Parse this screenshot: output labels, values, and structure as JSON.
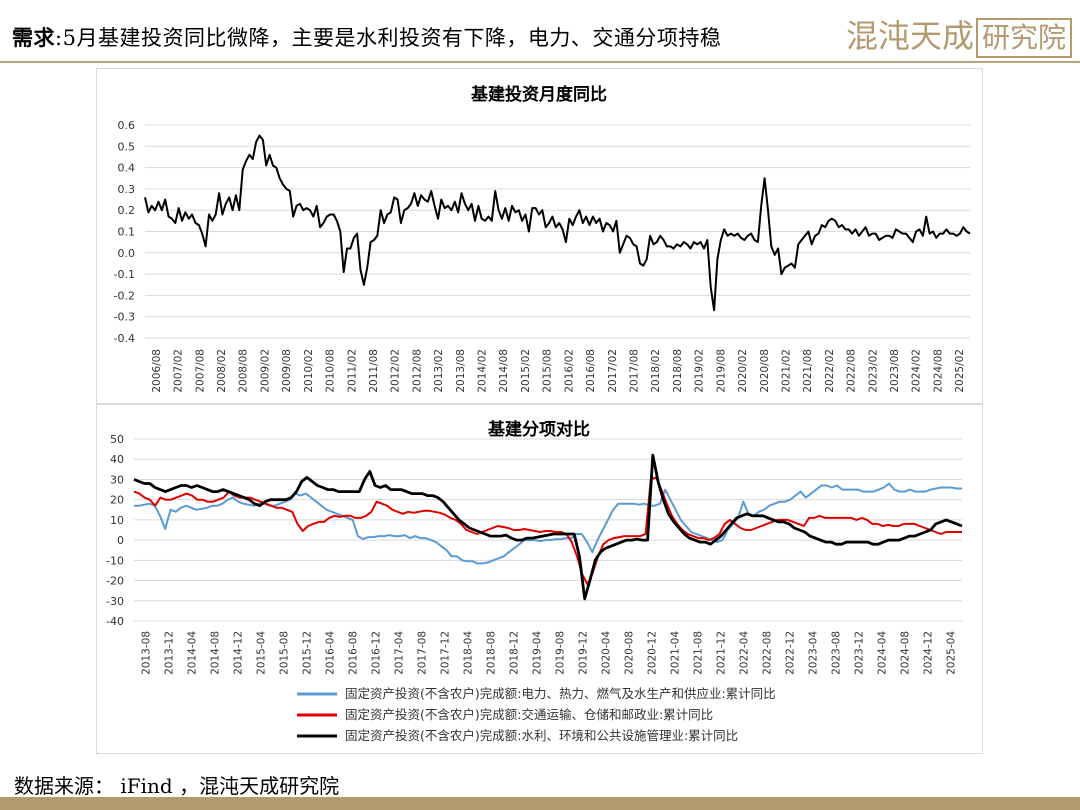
{
  "header": {
    "prefix": "需求",
    "colon": ":",
    "title": "5月基建投资同比微降，主要是水利投资有下降，电力、交通分项持稳",
    "logo_text": "混沌天成",
    "logo_box_text": "研究院"
  },
  "footer": {
    "source": "数据来源： iFind ，混沌天成研究院"
  },
  "colors": {
    "gold": "#b39a6f",
    "blue": "#5b9bd5",
    "red": "#e00000",
    "black": "#000000"
  },
  "chart_data": [
    {
      "type": "line",
      "title": "基建投资月度同比",
      "ylim": [
        -0.4,
        0.6
      ],
      "yticks": [
        "0.6",
        "0.5",
        "0.4",
        "0.3",
        "0.2",
        "0.1",
        "0.0",
        "-0.1",
        "-0.2",
        "-0.3",
        "-0.4"
      ],
      "xtick_labels": [
        "2006/08",
        "2007/02",
        "2007/08",
        "2008/02",
        "2008/08",
        "2009/02",
        "2009/08",
        "2010/02",
        "2010/08",
        "2011/02",
        "2011/08",
        "2012/02",
        "2012/08",
        "2013/02",
        "2013/08",
        "2014/02",
        "2014/08",
        "2015/02",
        "2015/08",
        "2016/02",
        "2016/08",
        "2017/02",
        "2017/08",
        "2018/02",
        "2018/08",
        "2019/02",
        "2019/08",
        "2020/02",
        "2020/08",
        "2021/02",
        "2021/08",
        "2022/02",
        "2022/08",
        "2023/02",
        "2023/08",
        "2024/02",
        "2024/08",
        "2025/02"
      ],
      "grid": true,
      "series": [
        {
          "color": "#000000",
          "values": [
            0.26,
            0.19,
            0.22,
            0.2,
            0.24,
            0.2,
            0.25,
            0.17,
            0.16,
            0.14,
            0.21,
            0.15,
            0.19,
            0.16,
            0.18,
            0.14,
            0.13,
            0.09,
            0.03,
            0.18,
            0.15,
            0.18,
            0.28,
            0.18,
            0.23,
            0.26,
            0.2,
            0.27,
            0.2,
            0.39,
            0.43,
            0.46,
            0.44,
            0.52,
            0.55,
            0.53,
            0.41,
            0.46,
            0.41,
            0.4,
            0.35,
            0.32,
            0.3,
            0.29,
            0.17,
            0.22,
            0.23,
            0.2,
            0.21,
            0.2,
            0.17,
            0.22,
            0.12,
            0.14,
            0.17,
            0.18,
            0.18,
            0.15,
            0.1,
            -0.09,
            0.02,
            0.02,
            0.07,
            0.09,
            -0.08,
            -0.15,
            -0.07,
            0.05,
            0.06,
            0.08,
            0.2,
            0.14,
            0.18,
            0.19,
            0.26,
            0.25,
            0.14,
            0.2,
            0.21,
            0.23,
            0.28,
            0.22,
            0.27,
            0.25,
            0.24,
            0.29,
            0.22,
            0.16,
            0.25,
            0.21,
            0.22,
            0.2,
            0.24,
            0.19,
            0.28,
            0.23,
            0.2,
            0.23,
            0.15,
            0.22,
            0.16,
            0.15,
            0.17,
            0.15,
            0.29,
            0.2,
            0.16,
            0.21,
            0.15,
            0.22,
            0.19,
            0.2,
            0.15,
            0.18,
            0.1,
            0.21,
            0.21,
            0.18,
            0.2,
            0.12,
            0.14,
            0.17,
            0.12,
            0.14,
            0.11,
            0.05,
            0.16,
            0.13,
            0.17,
            0.2,
            0.14,
            0.17,
            0.13,
            0.17,
            0.14,
            0.16,
            0.1,
            0.14,
            0.13,
            0.1,
            0.15,
            0.0,
            0.04,
            0.08,
            0.07,
            0.04,
            0.03,
            -0.05,
            -0.06,
            -0.03,
            0.08,
            0.04,
            0.05,
            0.08,
            0.06,
            0.03,
            0.03,
            0.02,
            0.04,
            0.03,
            0.05,
            0.04,
            0.02,
            0.05,
            0.04,
            0.05,
            0.02,
            0.06,
            -0.16,
            -0.27,
            -0.03,
            0.06,
            0.11,
            0.08,
            0.09,
            0.08,
            0.09,
            0.07,
            0.06,
            0.08,
            0.09,
            0.06,
            0.05,
            0.22,
            0.35,
            0.2,
            0.03,
            -0.01,
            0.02,
            -0.1,
            -0.07,
            -0.06,
            -0.05,
            -0.07,
            0.04,
            0.06,
            0.08,
            0.1,
            0.04,
            0.08,
            0.09,
            0.13,
            0.12,
            0.15,
            0.16,
            0.15,
            0.12,
            0.13,
            0.11,
            0.11,
            0.09,
            0.11,
            0.08,
            0.1,
            0.12,
            0.08,
            0.09,
            0.09,
            0.06,
            0.07,
            0.08,
            0.08,
            0.07,
            0.11,
            0.1,
            0.09,
            0.09,
            0.07,
            0.05,
            0.1,
            0.11,
            0.08,
            0.17,
            0.09,
            0.1,
            0.07,
            0.09,
            0.09,
            0.11,
            0.09,
            0.09,
            0.08,
            0.09,
            0.12,
            0.1,
            0.09
          ]
        }
      ]
    },
    {
      "type": "line",
      "title": "基建分项对比",
      "ylim": [
        -40,
        50
      ],
      "yticks": [
        "50",
        "40",
        "30",
        "20",
        "10",
        "0",
        "-10",
        "-20",
        "-30",
        "-40"
      ],
      "xtick_labels": [
        "2013-08",
        "2013-12",
        "2014-04",
        "2014-08",
        "2014-12",
        "2015-04",
        "2015-08",
        "2015-12",
        "2016-04",
        "2016-08",
        "2016-12",
        "2017-04",
        "2017-08",
        "2017-12",
        "2018-04",
        "2018-08",
        "2018-12",
        "2019-04",
        "2019-08",
        "2019-12",
        "2020-04",
        "2020-08",
        "2020-12",
        "2021-04",
        "2021-08",
        "2021-12",
        "2022-04",
        "2022-08",
        "2022-12",
        "2023-04",
        "2023-08",
        "2023-12",
        "2024-04",
        "2024-08",
        "2024-12",
        "2025-04"
      ],
      "grid": true,
      "legend": "bottom",
      "series": [
        {
          "name": "固定资产投资(不含农户)完成额:电力、热力、燃气及水生产和供应业:累计同比",
          "color": "#5b9bd5",
          "values": [
            17,
            17,
            17.5,
            18,
            17,
            12,
            5.5,
            15,
            14,
            16,
            17,
            16,
            15,
            15.5,
            16,
            17,
            17,
            18,
            20,
            21,
            19,
            18,
            17.5,
            17,
            18,
            18,
            17,
            17,
            18,
            19,
            20,
            23,
            22,
            23,
            21,
            19,
            17,
            15,
            14,
            13,
            12,
            11,
            10,
            2,
            0.5,
            1.5,
            1.5,
            2,
            2,
            2.5,
            2,
            2,
            2.5,
            1,
            2,
            1,
            1,
            0,
            -1,
            -3,
            -5,
            -8,
            -8,
            -10,
            -10.5,
            -10.5,
            -11.5,
            -11.5,
            -11,
            -10,
            -9,
            -8,
            -6,
            -4,
            -2,
            0,
            0,
            0,
            -0.5,
            0,
            0,
            0.5,
            0.5,
            1,
            1,
            3,
            3,
            -1,
            -6,
            0,
            5,
            10,
            15,
            18,
            18,
            18,
            18,
            17.5,
            18,
            17,
            17,
            18,
            25,
            20,
            15,
            10,
            7,
            4,
            3,
            2,
            1,
            0,
            -1,
            0,
            5,
            8,
            11,
            19,
            13,
            12,
            14,
            15,
            17,
            18,
            19,
            19,
            20,
            22,
            24,
            21,
            23,
            25,
            27,
            27,
            26,
            27,
            25,
            25,
            25,
            25,
            24,
            24,
            24,
            25,
            26,
            28,
            25,
            24,
            24,
            25,
            24,
            24,
            24,
            25,
            25.5,
            26,
            26,
            26,
            25.5,
            25.5
          ]
        },
        {
          "name": "固定资产投资(不含农户)完成额:交通运输、仓储和邮政业:累计同比",
          "color": "#e00000",
          "values": [
            24,
            23,
            21,
            20,
            17,
            21,
            20,
            20,
            21,
            22,
            23,
            22,
            20,
            20,
            19,
            19,
            20,
            21,
            24,
            22,
            21,
            21,
            21,
            20,
            19,
            18,
            17,
            16,
            16,
            15,
            14,
            8,
            4.5,
            7,
            8,
            9,
            9,
            11,
            12,
            11.5,
            12,
            12,
            11,
            11,
            12,
            14,
            19,
            18,
            17,
            15,
            14,
            13,
            14,
            13.5,
            14,
            14.5,
            14.5,
            14,
            13.5,
            12.5,
            11,
            10,
            8,
            5,
            4,
            3,
            4,
            5,
            6,
            7,
            6.5,
            6,
            5,
            5,
            5.5,
            5,
            4.5,
            4,
            4.5,
            4.5,
            4,
            4,
            3,
            -1,
            -8,
            -17,
            -22,
            -16,
            -8,
            -2,
            0,
            1,
            1.5,
            2,
            2,
            2,
            2,
            3,
            30,
            31,
            25,
            18,
            12,
            8,
            5,
            3,
            2,
            1,
            1,
            0,
            1,
            3,
            8,
            10,
            8,
            6,
            5,
            5,
            6,
            7,
            8,
            9,
            10,
            10,
            10,
            9,
            8,
            7,
            11,
            11,
            12,
            11,
            11,
            11,
            11,
            11,
            11,
            10,
            11,
            10,
            8,
            8,
            7,
            7.5,
            7,
            7,
            8,
            8,
            8,
            7,
            6,
            5,
            4,
            3,
            4,
            4,
            4,
            4
          ]
        },
        {
          "name": "固定资产投资(不含农户)完成额:水利、环境和公共设施管理业:累计同比",
          "color": "#000000",
          "values": [
            30,
            29,
            28,
            28,
            26,
            25,
            24,
            25,
            26,
            27,
            27,
            26,
            27,
            26,
            25,
            24,
            24,
            25,
            24,
            23,
            22,
            21,
            20,
            18,
            17,
            19,
            20,
            20,
            20,
            20,
            21,
            24,
            29,
            31,
            29,
            27,
            26,
            25,
            25,
            24,
            24,
            24,
            24,
            24,
            30,
            34,
            27,
            26,
            27,
            25,
            25,
            25,
            24,
            23,
            23,
            23,
            22,
            22,
            21,
            19,
            16,
            13,
            10,
            8,
            6,
            5,
            4,
            3,
            2,
            2,
            2,
            2.5,
            1,
            0,
            0,
            1,
            1,
            1.5,
            2,
            2.5,
            3,
            3,
            3,
            3,
            3,
            -8,
            -29,
            -20,
            -10,
            -6,
            -4,
            -3,
            -2,
            -1,
            0,
            0,
            0.5,
            0,
            0,
            42,
            29,
            20,
            13,
            9,
            6,
            3,
            1,
            0,
            -1,
            -1,
            -2,
            0,
            2,
            5,
            8,
            11,
            12,
            13,
            12,
            12,
            12,
            11,
            10,
            9,
            9,
            8,
            6,
            5,
            4,
            2,
            1,
            0,
            -1,
            -1,
            -2,
            -2,
            -1,
            -1,
            -1,
            -1,
            -1,
            -2,
            -2,
            -1,
            0,
            0,
            0,
            1,
            2,
            2,
            3,
            4,
            5,
            8,
            9,
            10,
            9,
            8,
            7
          ]
        }
      ]
    }
  ]
}
